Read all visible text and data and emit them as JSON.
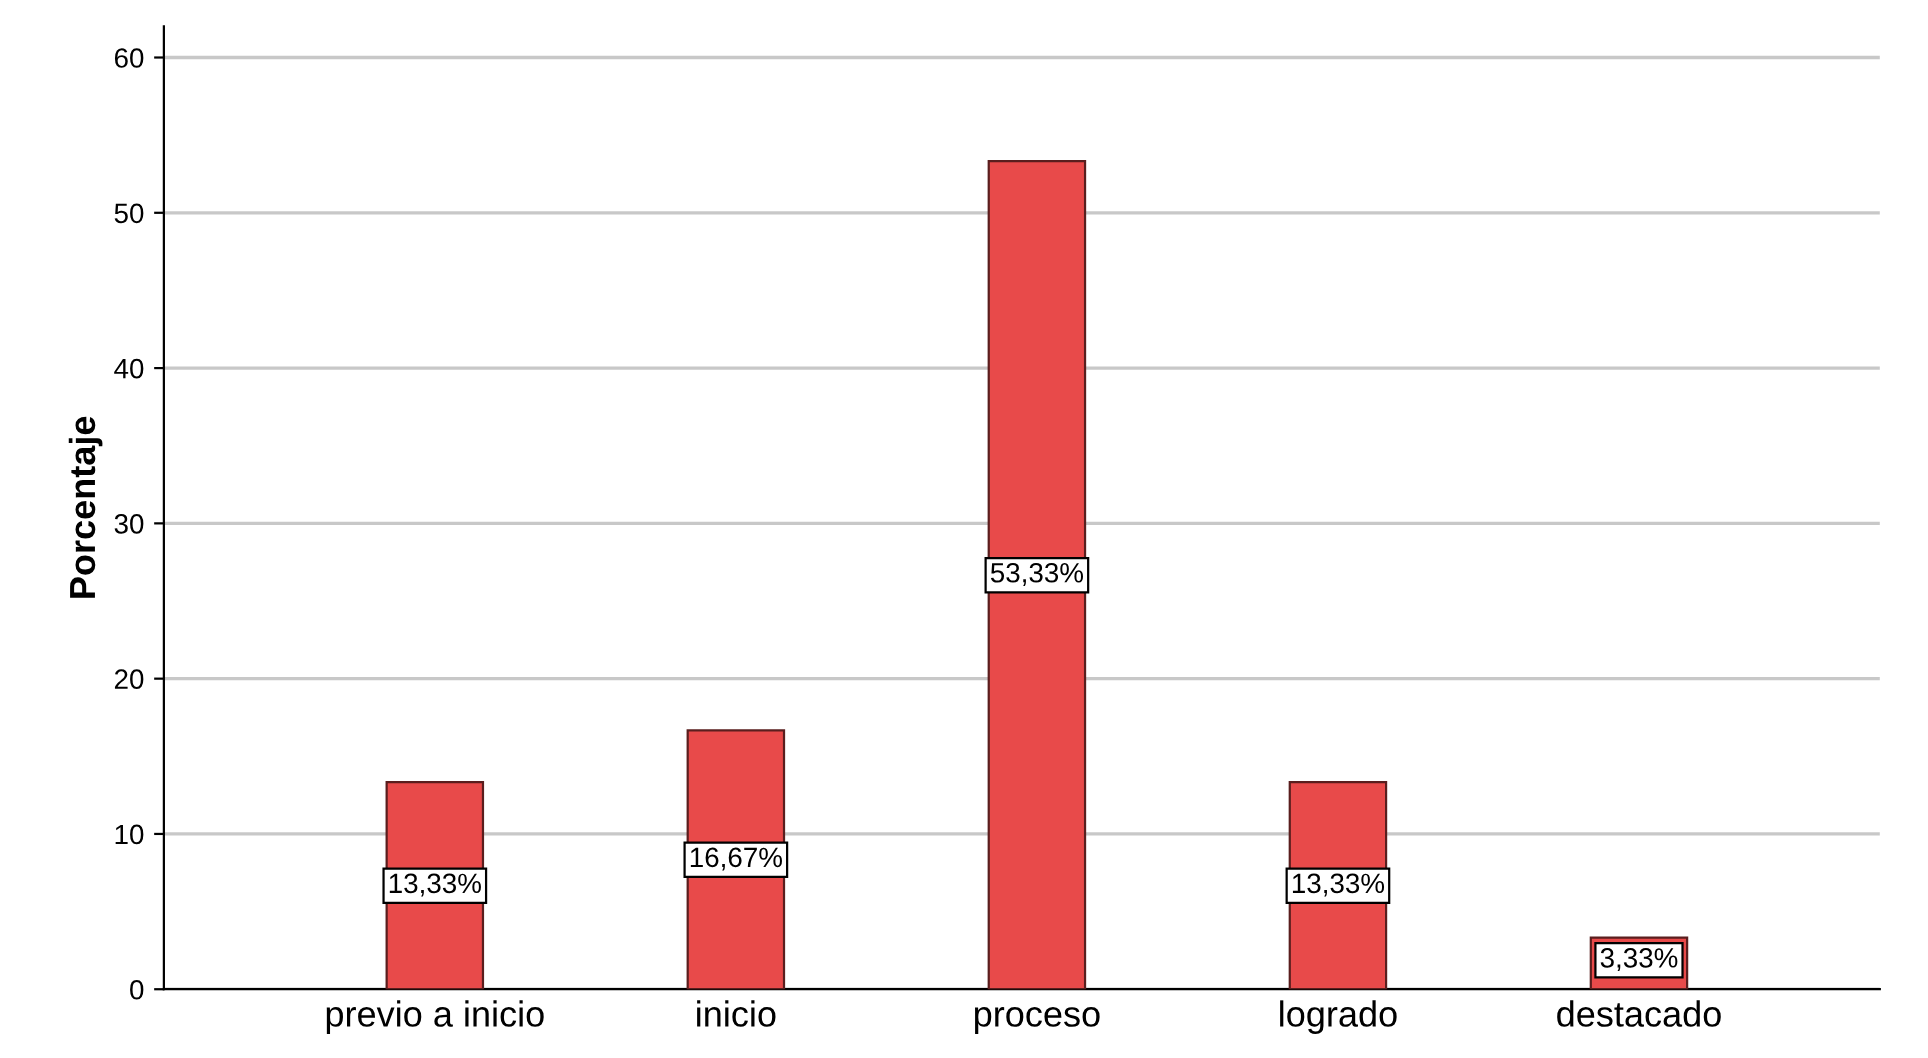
{
  "chart_data": {
    "type": "bar",
    "ylabel": "Porcentaje",
    "categories": [
      "previo a inicio",
      "inicio",
      "proceso",
      "logrado",
      "destacado"
    ],
    "values": [
      13.33,
      16.67,
      53.33,
      13.33,
      3.33
    ],
    "value_labels": [
      "13,33%",
      "16,67%",
      "53,33%",
      "13,33%",
      "3,33%"
    ],
    "color": "#e84a4a",
    "ylim": [
      0,
      62
    ],
    "yticks": [
      0,
      10,
      20,
      30,
      40,
      50,
      60
    ],
    "grid": "y"
  }
}
